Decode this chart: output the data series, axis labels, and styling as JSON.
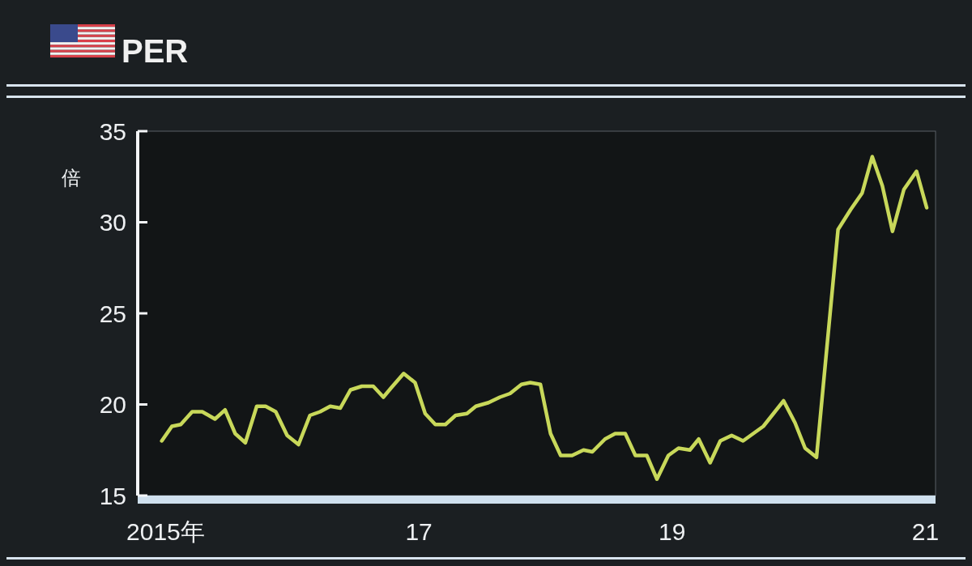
{
  "chart_data": {
    "type": "line",
    "title": "PER",
    "ylabel": "倍",
    "x": [
      2014.97,
      2015.05,
      2015.12,
      2015.21,
      2015.29,
      2015.39,
      2015.47,
      2015.55,
      2015.63,
      2015.72,
      2015.79,
      2015.87,
      2015.96,
      2016.05,
      2016.14,
      2016.22,
      2016.3,
      2016.38,
      2016.46,
      2016.55,
      2016.64,
      2016.72,
      2016.78,
      2016.88,
      2016.97,
      2017.05,
      2017.13,
      2017.21,
      2017.29,
      2017.38,
      2017.45,
      2017.55,
      2017.64,
      2017.72,
      2017.81,
      2017.88,
      2017.96,
      2018.04,
      2018.12,
      2018.21,
      2018.3,
      2018.37,
      2018.47,
      2018.55,
      2018.63,
      2018.71,
      2018.8,
      2018.88,
      2018.97,
      2019.05,
      2019.14,
      2019.21,
      2019.3,
      2019.38,
      2019.47,
      2019.56,
      2019.64,
      2019.72,
      2019.8,
      2019.88,
      2019.97,
      2020.05,
      2020.14,
      2020.31,
      2020.41,
      2020.5,
      2020.58,
      2020.66,
      2020.74,
      2020.83,
      2020.93,
      2021.01
    ],
    "series": [
      {
        "color": "#c8d85a",
        "values": [
          18.0,
          18.8,
          18.9,
          19.6,
          19.6,
          19.2,
          19.7,
          18.4,
          17.9,
          19.9,
          19.9,
          19.6,
          18.3,
          17.8,
          19.4,
          19.6,
          19.9,
          19.8,
          20.8,
          21.0,
          21.0,
          20.4,
          20.9,
          21.7,
          21.2,
          19.5,
          18.9,
          18.9,
          19.4,
          19.5,
          19.9,
          20.1,
          20.4,
          20.6,
          21.1,
          21.2,
          21.1,
          18.4,
          17.2,
          17.2,
          17.5,
          17.4,
          18.1,
          18.4,
          18.4,
          17.2,
          17.2,
          15.9,
          17.2,
          17.6,
          17.5,
          18.1,
          16.8,
          18.0,
          18.3,
          18.0,
          18.4,
          18.8,
          19.5,
          20.2,
          19.0,
          17.6,
          17.1,
          29.6,
          30.7,
          31.6,
          33.6,
          32.0,
          29.5,
          31.8,
          32.8,
          30.8
        ]
      }
    ],
    "xlim": [
      2014.78,
      2021.08
    ],
    "xticks": [
      {
        "value": 2015,
        "label": "2015年"
      },
      {
        "value": 2017,
        "label": "17"
      },
      {
        "value": 2019,
        "label": "19"
      },
      {
        "value": 2021,
        "label": "21"
      }
    ],
    "ylim": [
      15,
      35
    ],
    "yticks": [
      15,
      20,
      25,
      30,
      35
    ],
    "line_style": "solid",
    "grid": false
  }
}
